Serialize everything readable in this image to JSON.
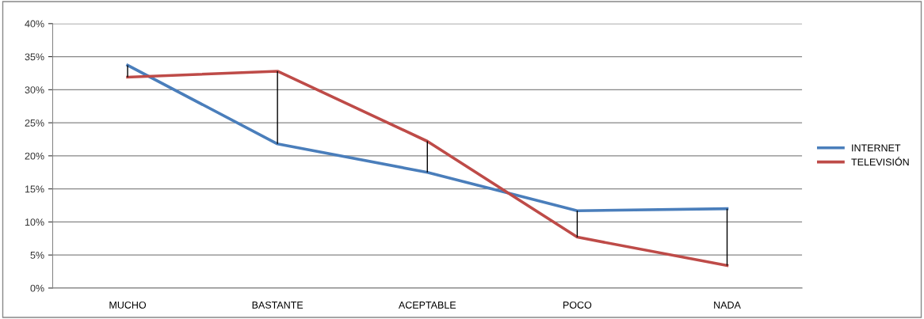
{
  "chart_data": {
    "type": "line",
    "categories": [
      "MUCHO",
      "BASTANTE",
      "ACEPTABLE",
      "POCO",
      "NADA"
    ],
    "series": [
      {
        "name": "INTERNET",
        "color": "#4a7ebb",
        "values": [
          33.7,
          21.8,
          17.5,
          11.7,
          12.0
        ]
      },
      {
        "name": "TELEVISIÓN",
        "color": "#be4b48",
        "values": [
          31.9,
          32.8,
          22.2,
          7.7,
          3.4
        ],
        "errors": [
          [
            31.9,
            33.7
          ],
          [
            21.8,
            32.8
          ],
          [
            17.5,
            22.2
          ],
          [
            7.7,
            11.7
          ],
          [
            3.4,
            12.0
          ]
        ]
      }
    ],
    "ylim": [
      0,
      40
    ],
    "yticks": [
      {
        "value": 0,
        "label": "0%"
      },
      {
        "value": 5,
        "label": "5%"
      },
      {
        "value": 10,
        "label": "10%"
      },
      {
        "value": 15,
        "label": "15%"
      },
      {
        "value": 20,
        "label": "20%"
      },
      {
        "value": 25,
        "label": "25%"
      },
      {
        "value": 30,
        "label": "30%"
      },
      {
        "value": 35,
        "label": "35%"
      },
      {
        "value": 40,
        "label": "40%"
      }
    ],
    "grid": "y",
    "legend": "right",
    "marker": "none",
    "line_style": "solid"
  }
}
